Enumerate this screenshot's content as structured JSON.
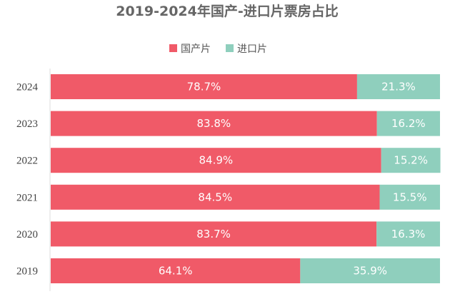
{
  "chart_data": {
    "type": "bar",
    "orientation": "horizontal",
    "stacked": true,
    "normalized_percent": true,
    "title": "2019-2024年国产-进口片票房占比",
    "xlabel": "",
    "ylabel": "",
    "xlim": [
      0,
      100
    ],
    "grid": false,
    "legend_position": "top-center",
    "categories": [
      "2024",
      "2023",
      "2022",
      "2021",
      "2020",
      "2019"
    ],
    "series": [
      {
        "name": "国产片",
        "color": "#f05a68",
        "values": [
          78.7,
          83.8,
          84.9,
          84.5,
          83.7,
          64.1
        ],
        "labels": [
          "78.7%",
          "83.8%",
          "84.9%",
          "84.5%",
          "83.7%",
          "64.1%"
        ]
      },
      {
        "name": "进口片",
        "color": "#8fcfbd",
        "values": [
          21.3,
          16.2,
          15.2,
          15.5,
          16.3,
          35.9
        ],
        "labels": [
          "21.3%",
          "16.2%",
          "15.2%",
          "15.5%",
          "16.3%",
          "35.9%"
        ]
      }
    ]
  }
}
